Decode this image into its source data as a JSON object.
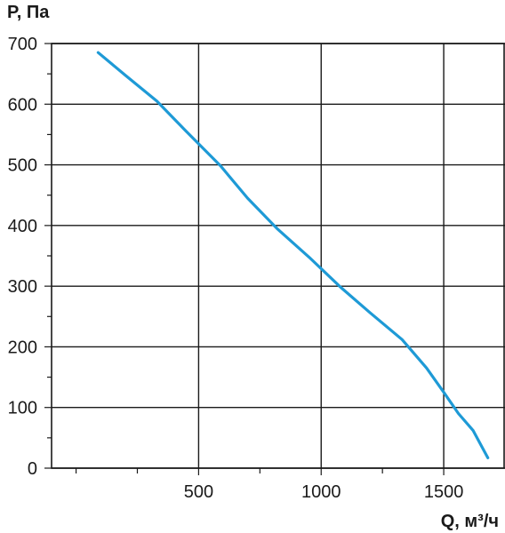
{
  "chart_data": {
    "type": "line",
    "title": "",
    "xlabel": "Q, м³/ч",
    "ylabel": "P, Па",
    "xlim": [
      -100,
      1750
    ],
    "ylim": [
      0,
      700
    ],
    "x_ticks": [
      500,
      1000,
      1500
    ],
    "x_tick_labels": [
      "500",
      "1000",
      "1500"
    ],
    "x_minor_ticks": [
      0,
      250,
      750,
      1250
    ],
    "y_ticks": [
      0,
      100,
      200,
      300,
      400,
      500,
      600,
      700
    ],
    "y_tick_labels": [
      "0",
      "100",
      "200",
      "300",
      "400",
      "500",
      "600",
      "700"
    ],
    "y_minor_ticks": [
      50,
      150,
      250,
      350,
      450,
      550,
      650
    ],
    "grid": true,
    "series": [
      {
        "color": "#1e9ad6",
        "x": [
          90,
          200,
          330,
          450,
          590,
          700,
          820,
          950,
          1080,
          1200,
          1330,
          1430,
          1500,
          1560,
          1620,
          1680
        ],
        "y": [
          685,
          648,
          605,
          555,
          498,
          445,
          395,
          348,
          298,
          256,
          212,
          165,
          125,
          90,
          62,
          17
        ]
      }
    ]
  }
}
